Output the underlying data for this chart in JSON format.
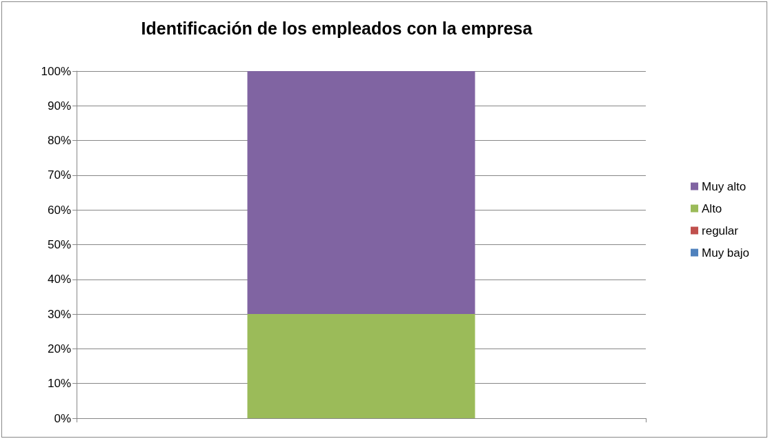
{
  "chart_data": {
    "type": "bar",
    "title": "Identificación de los empleados con la empresa",
    "categories": [
      null
    ],
    "stacked": true,
    "series": [
      {
        "name": "Muy bajo",
        "color": "#4f81bd",
        "values": [
          0
        ]
      },
      {
        "name": "regular",
        "color": "#c0504d",
        "values": [
          0
        ]
      },
      {
        "name": "Alto",
        "color": "#9bbb59",
        "values": [
          30
        ]
      },
      {
        "name": "Muy alto",
        "color": "#8064a2",
        "values": [
          70
        ]
      }
    ],
    "ylim": [
      0,
      100
    ],
    "yticks": [
      {
        "value": 0,
        "label": "0%"
      },
      {
        "value": 10,
        "label": "10%"
      },
      {
        "value": 20,
        "label": "20%"
      },
      {
        "value": 30,
        "label": "30%"
      },
      {
        "value": 40,
        "label": "40%"
      },
      {
        "value": 50,
        "label": "50%"
      },
      {
        "value": 60,
        "label": "60%"
      },
      {
        "value": 70,
        "label": "70%"
      },
      {
        "value": 80,
        "label": "80%"
      },
      {
        "value": 90,
        "label": "90%"
      },
      {
        "value": 100,
        "label": "100%"
      }
    ],
    "grid": "y",
    "legend": "right"
  }
}
